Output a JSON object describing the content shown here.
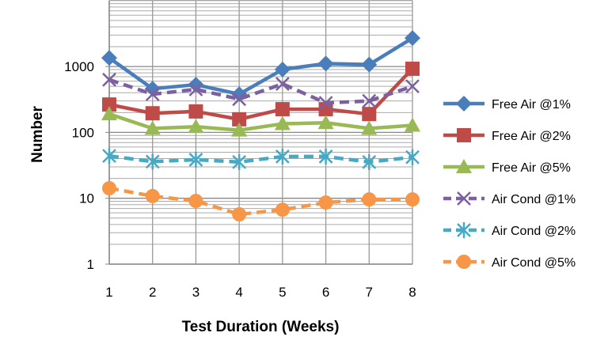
{
  "chart_data": {
    "type": "line",
    "title": "",
    "xlabel": "Test Duration (Weeks)",
    "ylabel": "Number",
    "x": [
      1,
      2,
      3,
      4,
      5,
      6,
      7,
      8
    ],
    "x_tick_labels": [
      "1",
      "2",
      "3",
      "4",
      "5",
      "6",
      "7",
      "8"
    ],
    "y_scale": "log",
    "ylim": [
      1,
      10000
    ],
    "y_tick_labels": [
      "1",
      "10",
      "100",
      "1000"
    ],
    "y_tick_values": [
      1,
      10,
      100,
      1000
    ],
    "grid": true,
    "legend_position": "right",
    "series": [
      {
        "name": "Free Air @1%",
        "color": "#4a7ebb",
        "marker": "diamond",
        "dash": false,
        "values": [
          1350,
          460,
          530,
          380,
          900,
          1110,
          1070,
          2700
        ]
      },
      {
        "name": "Free Air @2%",
        "color": "#be4b48",
        "marker": "square",
        "dash": false,
        "values": [
          265,
          195,
          208,
          158,
          225,
          225,
          190,
          925
        ]
      },
      {
        "name": "Free Air @5%",
        "color": "#98b954",
        "marker": "triangle",
        "dash": false,
        "values": [
          190,
          115,
          122,
          108,
          135,
          140,
          115,
          128
        ]
      },
      {
        "name": "Air Cond @1%",
        "color": "#7d60a0",
        "marker": "x",
        "dash": true,
        "values": [
          630,
          380,
          450,
          320,
          545,
          280,
          300,
          500
        ]
      },
      {
        "name": "Air Cond @2%",
        "color": "#46aac5",
        "marker": "star",
        "dash": true,
        "values": [
          44,
          36,
          38.5,
          35.5,
          43,
          43,
          35.5,
          42
        ]
      },
      {
        "name": "Air Cond @5%",
        "color": "#f79646",
        "marker": "circle",
        "dash": true,
        "values": [
          14.2,
          10.8,
          9.1,
          5.7,
          6.7,
          8.6,
          9.6,
          9.6
        ]
      }
    ]
  }
}
